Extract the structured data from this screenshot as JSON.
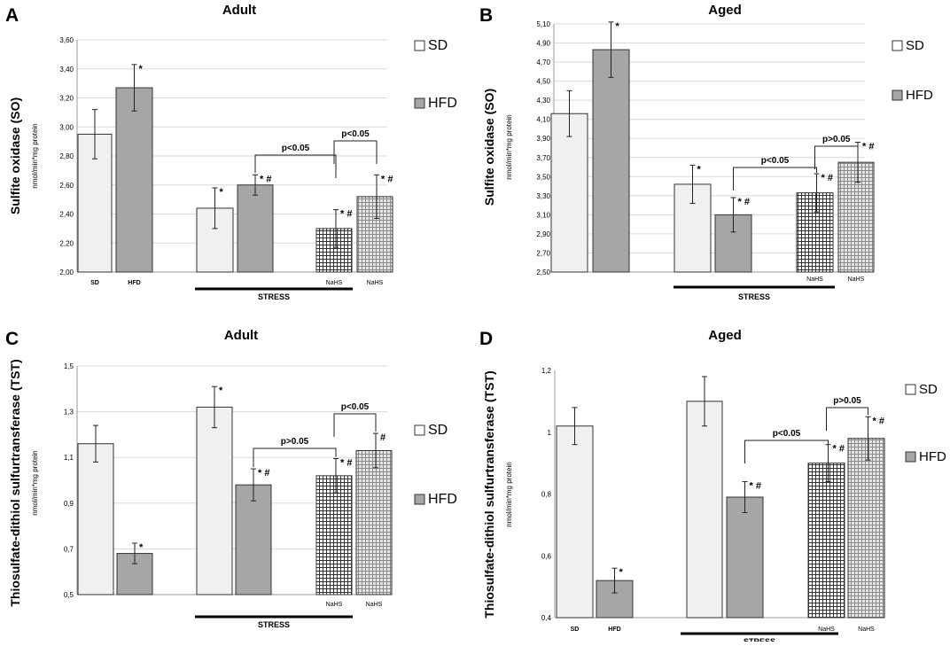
{
  "colors": {
    "sd": "#f0f0f0",
    "hfd": "#a6a6a6",
    "stroke": "#333333",
    "grid": "#d9d9d9"
  },
  "chart_data": [
    {
      "panel": "A",
      "type": "bar",
      "title": "Adult",
      "ylabel": "Sulfite oxidase (SO)",
      "yunit": "nmol/min*mg protein",
      "ylim": [
        2.0,
        3.6
      ],
      "yticks": [
        "2,00",
        "2,20",
        "2,40",
        "2,60",
        "2,80",
        "3,00",
        "3,20",
        "3,40",
        "3,60"
      ],
      "grid": true,
      "categories": [
        "SD",
        "HFD",
        "STRESS SD",
        "STRESS HFD",
        "STRESS NaHS SD",
        "STRESS NaHS HFD"
      ],
      "xlabels": [
        "SD",
        "HFD",
        "",
        "",
        "NaHS",
        "NaHS"
      ],
      "group_label": "STRESS",
      "values": [
        2.95,
        3.27,
        2.44,
        2.6,
        2.3,
        2.52
      ],
      "errors": [
        0.17,
        0.16,
        0.14,
        0.07,
        0.13,
        0.15
      ],
      "marks": [
        "",
        "*",
        "*",
        "* #",
        "* #",
        "* #"
      ],
      "brackets": [
        {
          "from": 3,
          "to": 4,
          "text": "p<0.05"
        },
        {
          "from": 4,
          "to": 5,
          "text": "p<0.05"
        }
      ],
      "legend": [
        "SD",
        "HFD"
      ]
    },
    {
      "panel": "B",
      "type": "bar",
      "title": "Aged",
      "ylabel": "Sulfite oxidase (SO)",
      "yunit": "nmol/min*mg protein",
      "ylim": [
        2.5,
        5.1
      ],
      "yticks": [
        "2,50",
        "2,70",
        "2,90",
        "3,10",
        "3,30",
        "3,50",
        "3,70",
        "3,90",
        "4,10",
        "4,30",
        "4,50",
        "4,70",
        "4,90",
        "5,10"
      ],
      "grid": true,
      "categories": [
        "SD",
        "HFD",
        "STRESS SD",
        "STRESS HFD",
        "STRESS NaHS SD",
        "STRESS NaHS HFD"
      ],
      "xlabels": [
        "",
        "",
        "",
        "",
        "NaHS",
        "NaHS"
      ],
      "group_label": "STRESS",
      "values": [
        4.16,
        4.83,
        3.42,
        3.1,
        3.33,
        3.65
      ],
      "errors": [
        0.24,
        0.29,
        0.2,
        0.18,
        0.2,
        0.21
      ],
      "marks": [
        "",
        "*",
        "*",
        "* #",
        "* #",
        "* #"
      ],
      "brackets": [
        {
          "from": 3,
          "to": 4,
          "text": "p<0.05"
        },
        {
          "from": 4,
          "to": 5,
          "text": "p>0.05"
        }
      ],
      "legend": [
        "SD",
        "HFD"
      ]
    },
    {
      "panel": "C",
      "type": "bar",
      "title": "Adult",
      "ylabel": "Thiosulfate-dithiol sulfurtransferase (TST)",
      "yunit": "nmol/min*mg protein",
      "ylim": [
        0.5,
        1.5
      ],
      "yticks": [
        "0,5",
        "0,7",
        "0,9",
        "1,1",
        "1,3",
        "1,5"
      ],
      "grid": true,
      "categories": [
        "SD",
        "HFD",
        "STRESS SD",
        "STRESS HFD",
        "STRESS NaHS SD",
        "STRESS NaHS HFD"
      ],
      "xlabels": [
        "",
        "",
        "",
        "",
        "NaHS",
        "NaHS"
      ],
      "group_label": "STRESS",
      "values": [
        1.16,
        0.68,
        1.32,
        0.98,
        1.02,
        1.13
      ],
      "errors": [
        0.08,
        0.045,
        0.09,
        0.07,
        0.075,
        0.075
      ],
      "marks": [
        "",
        "*",
        "*",
        "* #",
        "* #",
        "#"
      ],
      "brackets": [
        {
          "from": 3,
          "to": 4,
          "text": "p>0.05"
        },
        {
          "from": 4,
          "to": 5,
          "text": "p<0.05"
        }
      ],
      "legend": [
        "SD",
        "HFD"
      ]
    },
    {
      "panel": "D",
      "type": "bar",
      "title": "Aged",
      "ylabel": "Thiosulfate-dithiol sulfurtransferase (TST)",
      "yunit": "nmol/min*mg protein",
      "ylim": [
        0.4,
        1.2
      ],
      "yticks": [
        "0,4",
        "0,6",
        "0,8",
        "1",
        "1,2"
      ],
      "grid": false,
      "categories": [
        "SD",
        "HFD",
        "STRESS SD",
        "STRESS HFD",
        "STRESS NaHS SD",
        "STRESS NaHS HFD"
      ],
      "xlabels": [
        "SD",
        "HFD",
        "",
        "",
        "NaHS",
        "NaHS"
      ],
      "group_label": "STRESS",
      "values": [
        1.02,
        0.52,
        1.1,
        0.79,
        0.9,
        0.98
      ],
      "errors": [
        0.06,
        0.04,
        0.08,
        0.05,
        0.06,
        0.07
      ],
      "marks": [
        "",
        "*",
        "",
        "* #",
        "* #",
        "* #"
      ],
      "brackets": [
        {
          "from": 3,
          "to": 4,
          "text": "p<0.05"
        },
        {
          "from": 4,
          "to": 5,
          "text": "p>0.05"
        }
      ],
      "legend": [
        "SD",
        "HFD"
      ]
    }
  ]
}
